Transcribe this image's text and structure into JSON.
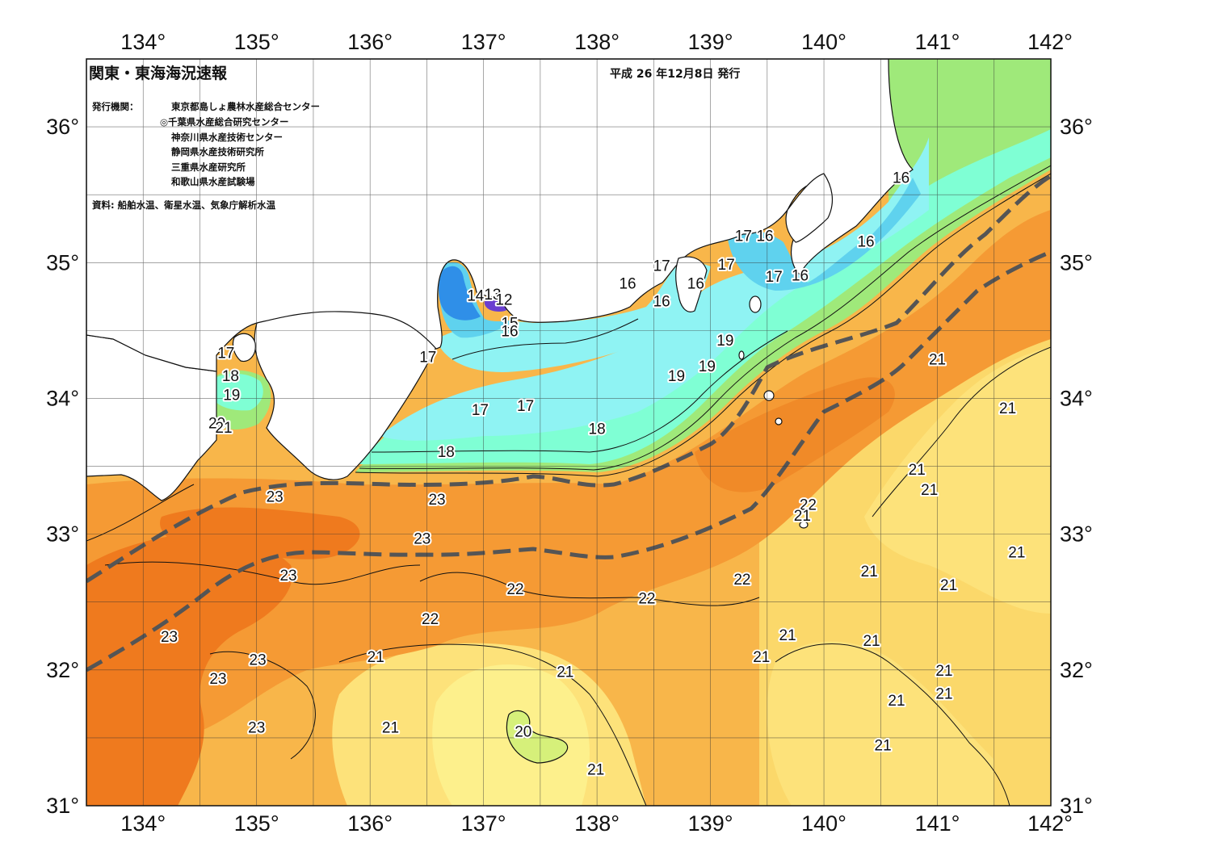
{
  "header": {
    "title": "関東・東海海況速報",
    "issue_date": "平成 26 年12月8日 発行"
  },
  "issuers": {
    "label": "発行機関：",
    "orgs": [
      "東京都島しょ農林水産総合センター",
      "◎千葉県水産総合研究センター",
      "神奈川県水産技術センター",
      "静岡県水産技術研究所",
      "三重県水産研究所",
      "和歌山県水産試験場"
    ]
  },
  "source_note": "資料: 船舶水温、衛星水温、気象庁解析水温",
  "axes": {
    "lon_labels": [
      "134°",
      "135°",
      "136°",
      "137°",
      "138°",
      "139°",
      "140°",
      "141°",
      "142°"
    ],
    "lat_labels": [
      "36°",
      "35°",
      "34°",
      "33°",
      "32°",
      "31°"
    ]
  },
  "colors": {
    "land": "#ffffff",
    "deep_orange": "#ef7a1e",
    "orange": "#f59a34",
    "light_orange": "#f8b64a",
    "yellow": "#fbd86a",
    "pale_yellow": "#fdf08c",
    "green": "#9fe97a",
    "aqua": "#7fffd4",
    "cyan": "#8ff3f3",
    "light_blue": "#5fd2ee",
    "blue": "#2f8fe8",
    "purple": "#6a3fd0",
    "kuroshio_axis": "#555555"
  },
  "isotherm_labels": [
    {
      "text": "17",
      "lon": 134.73,
      "lat": 34.34
    },
    {
      "text": "18",
      "lon": 134.77,
      "lat": 34.17
    },
    {
      "text": "19",
      "lon": 134.78,
      "lat": 34.03
    },
    {
      "text": "20",
      "lon": 134.65,
      "lat": 33.82
    },
    {
      "text": "21",
      "lon": 134.71,
      "lat": 33.79
    },
    {
      "text": "14",
      "lon": 136.93,
      "lat": 34.76
    },
    {
      "text": "13",
      "lon": 137.08,
      "lat": 34.77
    },
    {
      "text": "12",
      "lon": 137.18,
      "lat": 34.73
    },
    {
      "text": "15",
      "lon": 137.23,
      "lat": 34.56
    },
    {
      "text": "16",
      "lon": 137.23,
      "lat": 34.5
    },
    {
      "text": "17",
      "lon": 136.51,
      "lat": 34.31
    },
    {
      "text": "18",
      "lon": 136.67,
      "lat": 33.61
    },
    {
      "text": "17",
      "lon": 136.97,
      "lat": 33.92
    },
    {
      "text": "17",
      "lon": 137.37,
      "lat": 33.95
    },
    {
      "text": "18",
      "lon": 138.0,
      "lat": 33.78
    },
    {
      "text": "16",
      "lon": 138.27,
      "lat": 34.85
    },
    {
      "text": "17",
      "lon": 138.57,
      "lat": 34.98
    },
    {
      "text": "16",
      "lon": 138.57,
      "lat": 34.72
    },
    {
      "text": "16",
      "lon": 138.87,
      "lat": 34.85
    },
    {
      "text": "17",
      "lon": 139.14,
      "lat": 34.99
    },
    {
      "text": "17",
      "lon": 139.29,
      "lat": 35.2
    },
    {
      "text": "16",
      "lon": 139.48,
      "lat": 35.2
    },
    {
      "text": "17",
      "lon": 139.56,
      "lat": 34.9
    },
    {
      "text": "16",
      "lon": 139.79,
      "lat": 34.91
    },
    {
      "text": "16",
      "lon": 140.37,
      "lat": 35.16
    },
    {
      "text": "16",
      "lon": 140.68,
      "lat": 35.63
    },
    {
      "text": "19",
      "lon": 138.7,
      "lat": 34.17
    },
    {
      "text": "19",
      "lon": 139.13,
      "lat": 34.43
    },
    {
      "text": "19",
      "lon": 138.97,
      "lat": 34.24
    },
    {
      "text": "23",
      "lon": 135.16,
      "lat": 33.28
    },
    {
      "text": "23",
      "lon": 136.59,
      "lat": 33.26
    },
    {
      "text": "23",
      "lon": 136.46,
      "lat": 32.97
    },
    {
      "text": "23",
      "lon": 135.28,
      "lat": 32.7
    },
    {
      "text": "23",
      "lon": 134.23,
      "lat": 32.25
    },
    {
      "text": "23",
      "lon": 135.01,
      "lat": 32.08
    },
    {
      "text": "23",
      "lon": 134.66,
      "lat": 31.94
    },
    {
      "text": "23",
      "lon": 135.0,
      "lat": 31.58
    },
    {
      "text": "22",
      "lon": 137.28,
      "lat": 32.6
    },
    {
      "text": "22",
      "lon": 136.53,
      "lat": 32.38
    },
    {
      "text": "22",
      "lon": 138.44,
      "lat": 32.53
    },
    {
      "text": "22",
      "lon": 139.28,
      "lat": 32.67
    },
    {
      "text": "22",
      "lon": 139.86,
      "lat": 33.22
    },
    {
      "text": "21",
      "lon": 139.81,
      "lat": 33.14
    },
    {
      "text": "21",
      "lon": 136.05,
      "lat": 32.1
    },
    {
      "text": "21",
      "lon": 137.72,
      "lat": 31.99
    },
    {
      "text": "21",
      "lon": 136.18,
      "lat": 31.58
    },
    {
      "text": "20",
      "lon": 137.35,
      "lat": 31.55
    },
    {
      "text": "21",
      "lon": 137.99,
      "lat": 31.27
    },
    {
      "text": "21",
      "lon": 139.68,
      "lat": 32.26
    },
    {
      "text": "21",
      "lon": 139.45,
      "lat": 32.1
    },
    {
      "text": "21",
      "lon": 140.4,
      "lat": 32.73
    },
    {
      "text": "21",
      "lon": 140.42,
      "lat": 32.22
    },
    {
      "text": "21",
      "lon": 140.64,
      "lat": 31.78
    },
    {
      "text": "21",
      "lon": 140.52,
      "lat": 31.45
    },
    {
      "text": "21",
      "lon": 141.1,
      "lat": 32.63
    },
    {
      "text": "21",
      "lon": 141.06,
      "lat": 32.0
    },
    {
      "text": "21",
      "lon": 141.06,
      "lat": 31.83
    },
    {
      "text": "21",
      "lon": 141.7,
      "lat": 32.87
    },
    {
      "text": "21",
      "lon": 140.82,
      "lat": 33.48
    },
    {
      "text": "21",
      "lon": 140.93,
      "lat": 33.33
    },
    {
      "text": "21",
      "lon": 141.0,
      "lat": 34.29
    },
    {
      "text": "21",
      "lon": 141.62,
      "lat": 33.93
    }
  ]
}
